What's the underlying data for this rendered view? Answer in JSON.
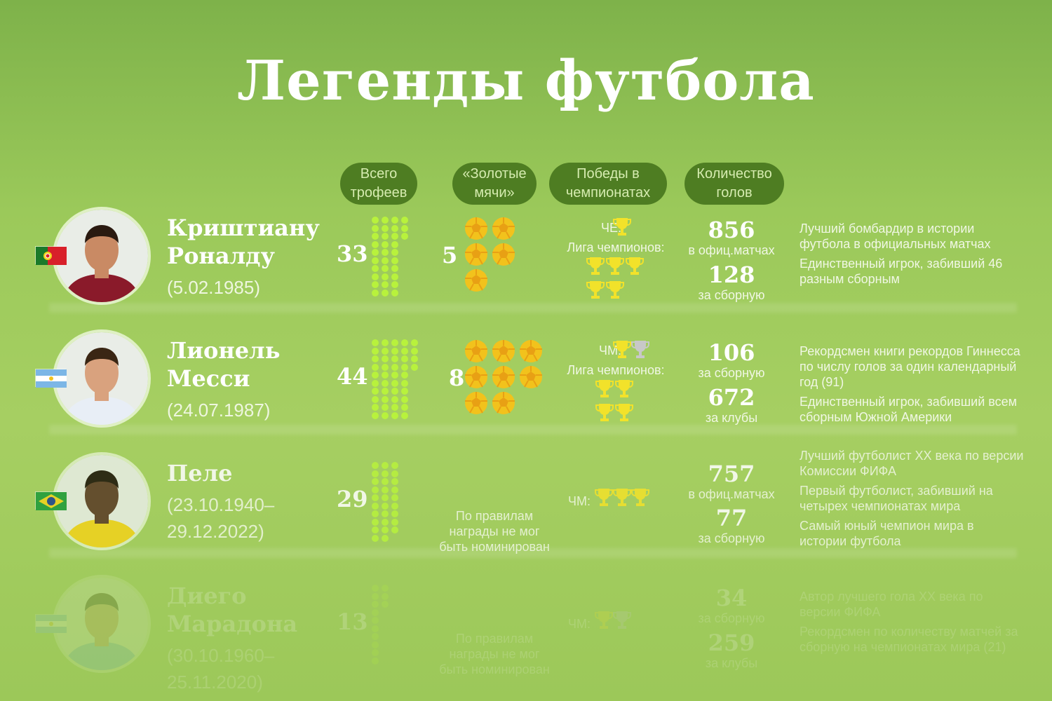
{
  "title": "Легенды футбола",
  "headers": {
    "trophies": "Всего трофеев",
    "ballon": "«Золотые мячи»",
    "wins": "Победы в чемпионатах",
    "goals": "Количество голов"
  },
  "players": [
    {
      "name_line1": "Криштиану",
      "name_line2": "Роналду",
      "dates_line1": "(5.02.1985)",
      "dates_line2": "",
      "trophies": 33,
      "trophies_text": "33",
      "ballon": 5,
      "ballon_text": "5",
      "ballon_note": "",
      "wins_label1": "ЧЕ:",
      "wins_label1_gold": 1,
      "wins_label1_silver": 0,
      "wins_label2": "Лига чемпионов:",
      "wins_label2_gold": 5,
      "goal1": "856",
      "goal1_label": "в офиц.матчах",
      "goal2": "128",
      "goal2_label": "за сборную",
      "fact1": "Лучший бомбардир в истории футбола в официальных матчах",
      "fact2": "Единственный игрок, забивший 46 разным сборным",
      "fact3": "",
      "flag": "portugal"
    },
    {
      "name_line1": "Лионель",
      "name_line2": "Месси",
      "dates_line1": "(24.07.1987)",
      "dates_line2": "",
      "trophies": 44,
      "trophies_text": "44",
      "ballon": 8,
      "ballon_text": "8",
      "ballon_note": "",
      "wins_label1": "ЧМ:",
      "wins_label1_gold": 1,
      "wins_label1_silver": 1,
      "wins_label2": "Лига чемпионов:",
      "wins_label2_gold": 4,
      "goal1": "106",
      "goal1_label": "за сборную",
      "goal2": "672",
      "goal2_label": "за клубы",
      "fact1": "Рекордсмен книги рекордов Гиннесса по числу голов за один календарный год (91)",
      "fact2": "Единственный игрок, забивший всем сборным Южной Америки",
      "fact3": "",
      "flag": "argentina"
    },
    {
      "name_line1": "Пеле",
      "name_line2": "",
      "dates_line1": "(23.10.1940–",
      "dates_line2": "29.12.2022)",
      "trophies": 29,
      "trophies_text": "29",
      "ballon": 0,
      "ballon_text": "",
      "ballon_note": "По правилам награды не мог быть номинирован",
      "wins_label1": "ЧМ:",
      "wins_label1_gold": 3,
      "wins_label1_silver": 0,
      "wins_label2": "",
      "wins_label2_gold": 0,
      "goal1": "757",
      "goal1_label": "в офиц.матчах",
      "goal2": "77",
      "goal2_label": "за сборную",
      "fact1": "Лучший футболист XX века по версии Комиссии ФИФА",
      "fact2": "Первый футболист, забивший на четырех чемпионатах мира",
      "fact3": "Самый юный чемпион мира в истории футбола",
      "flag": "brazil"
    },
    {
      "name_line1": "Диего",
      "name_line2": "Марадона",
      "dates_line1": "(30.10.1960–",
      "dates_line2": "25.11.2020)",
      "trophies": 13,
      "trophies_text": "13",
      "ballon": 0,
      "ballon_text": "",
      "ballon_note": "По правилам награды не мог быть номинирован",
      "wins_label1": "ЧМ:",
      "wins_label1_gold": 1,
      "wins_label1_silver": 1,
      "wins_label2": "",
      "wins_label2_gold": 0,
      "goal1": "34",
      "goal1_label": "за сборную",
      "goal2": "259",
      "goal2_label": "за клубы",
      "fact1": "Автор лучшего гола XX века по версии ФИФА",
      "fact2": "Рекордсмен по количеству матчей за сборную на чемпионатах мира (21)",
      "fact3": "",
      "flag": "argentina"
    }
  ],
  "colors": {
    "header_bg": "#4e7d22",
    "dot": "#b8f23c",
    "gold": "#f2e22a",
    "silver": "#c8c8c8",
    "ball": "#f2c21c"
  }
}
